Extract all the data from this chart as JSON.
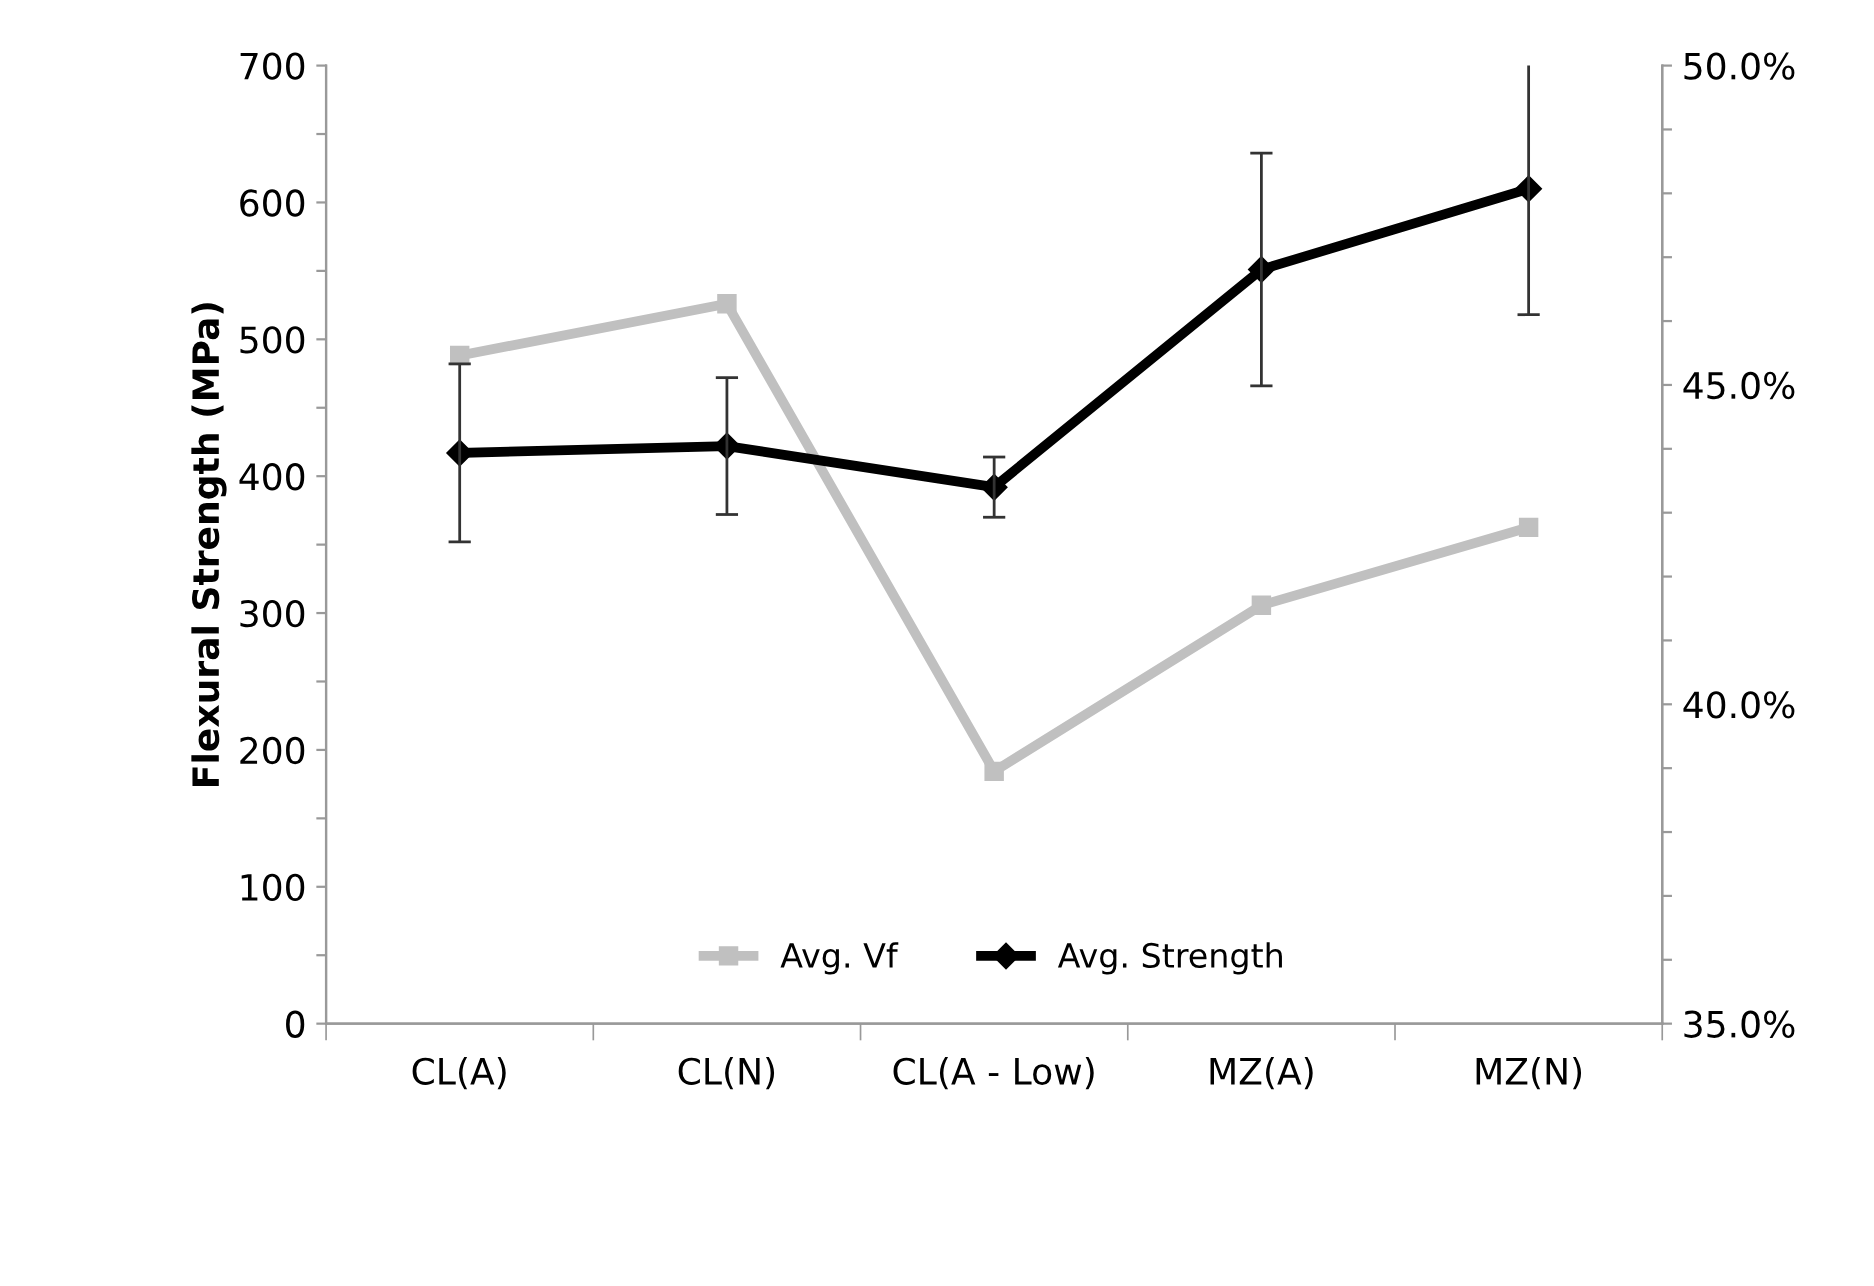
{
  "chart_data": {
    "type": "line",
    "ylabel": "Flexural Strength (MPa)",
    "categories": [
      "CL(A)",
      "CL(N)",
      "CL(A - Low)",
      "MZ(A)",
      "MZ(N)"
    ],
    "series": [
      {
        "name": "Avg. Strength",
        "color": "#000000",
        "values": [
          417,
          422,
          392,
          551,
          610
        ],
        "errors": [
          65,
          50,
          22,
          85,
          92
        ],
        "marker": "diamond"
      },
      {
        "name": "Avg. Vf",
        "color": "#c0c0c0",
        "values": [
          45.46,
          46.27,
          38.95,
          41.55,
          42.77
        ],
        "axis": "y2",
        "marker": "square"
      }
    ],
    "ylim": [
      0,
      700
    ],
    "yticks": [
      0,
      {
        "value": 50,
        "label": null
      },
      100,
      {
        "value": 150,
        "label": null
      },
      200,
      {
        "value": 250,
        "label": null
      },
      300,
      {
        "value": 350,
        "label": null
      },
      400,
      {
        "value": 450,
        "label": null
      },
      500,
      {
        "value": 550,
        "label": null
      },
      600,
      {
        "value": 650,
        "label": null
      },
      700
    ],
    "y2lim": [
      35,
      50
    ],
    "y2ticks": [
      {
        "value": 35,
        "label": "35.0%"
      },
      {
        "value": 36,
        "label": null
      },
      {
        "value": 37,
        "label": null
      },
      {
        "value": 38,
        "label": null
      },
      {
        "value": 39,
        "label": null
      },
      {
        "value": 40,
        "label": "40.0%"
      },
      {
        "value": 41,
        "label": null
      },
      {
        "value": 42,
        "label": null
      },
      {
        "value": 43,
        "label": null
      },
      {
        "value": 44,
        "label": null
      },
      {
        "value": 45,
        "label": "45.0%"
      },
      {
        "value": 46,
        "label": null
      },
      {
        "value": 47,
        "label": null
      },
      {
        "value": 48,
        "label": null
      },
      {
        "value": 49,
        "label": null
      },
      {
        "value": 50,
        "label": "50.0%"
      }
    ],
    "legend": "bottom",
    "grid": false,
    "line_style": "solid"
  }
}
